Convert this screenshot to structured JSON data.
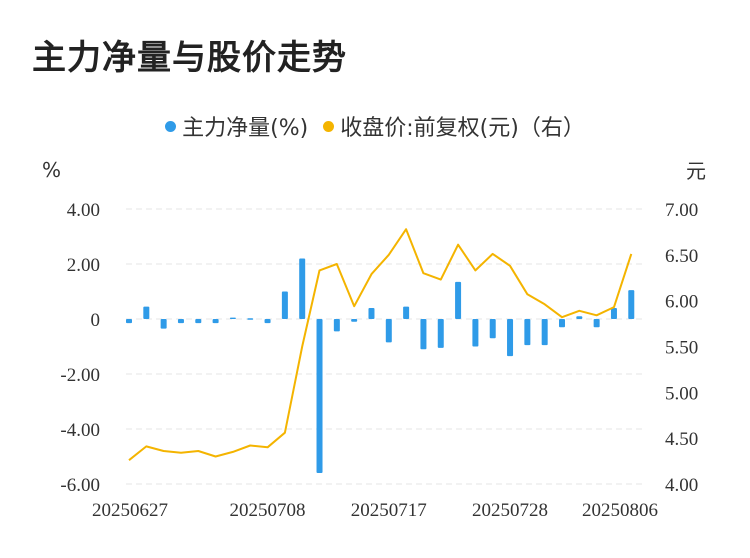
{
  "title": "主力净量与股价走势",
  "legend": {
    "series1": "主力净量(%)",
    "series2": "收盘价:前复权(元)（右）"
  },
  "colors": {
    "bar": "#2f9be8",
    "line": "#f4b400",
    "grid": "#e5e5e5"
  },
  "chart_data": {
    "type": "bar",
    "title": "主力净量与股价走势",
    "left_unit": "%",
    "right_unit": "元",
    "x_tick_labels": [
      "20250627",
      "20250708",
      "20250717",
      "20250728",
      "20250806"
    ],
    "x_tick_indices": [
      0,
      8,
      15,
      22,
      29
    ],
    "y_left": {
      "ylim": [
        -6,
        4
      ],
      "ticks": [
        4,
        2,
        0,
        -2,
        -4,
        -6
      ],
      "tick_labels": [
        "4.00",
        "2.00",
        "0",
        "-2.00",
        "-4.00",
        "-6.00"
      ]
    },
    "y_right": {
      "ylim": [
        4,
        7
      ],
      "ticks": [
        7,
        6.5,
        6,
        5.5,
        5,
        4.5,
        4
      ],
      "tick_labels": [
        "7.00",
        "6.50",
        "6.00",
        "5.50",
        "5.00",
        "4.50",
        "4.00"
      ]
    },
    "grid": true,
    "legend_position": "top-center",
    "series": [
      {
        "name": "主力净量(%)",
        "kind": "bar",
        "axis": "left",
        "values": [
          -0.15,
          0.45,
          -0.35,
          -0.15,
          -0.15,
          -0.15,
          0.05,
          0.0,
          -0.15,
          1.0,
          2.2,
          -5.6,
          -0.45,
          -0.1,
          0.4,
          -0.85,
          0.45,
          -1.1,
          -1.05,
          1.35,
          -1.0,
          -0.7,
          -1.35,
          -0.95,
          -0.95,
          -0.3,
          0.1,
          -0.3,
          0.4,
          1.05
        ]
      },
      {
        "name": "收盘价:前复权(元)（右）",
        "kind": "line",
        "axis": "right",
        "values": [
          4.26,
          4.41,
          4.36,
          4.34,
          4.36,
          4.3,
          4.35,
          4.42,
          4.4,
          4.56,
          5.5,
          6.33,
          6.4,
          5.94,
          6.29,
          6.5,
          6.78,
          6.3,
          6.23,
          6.61,
          6.33,
          6.51,
          6.38,
          6.07,
          5.96,
          5.82,
          5.89,
          5.84,
          5.93,
          6.51
        ]
      }
    ]
  }
}
